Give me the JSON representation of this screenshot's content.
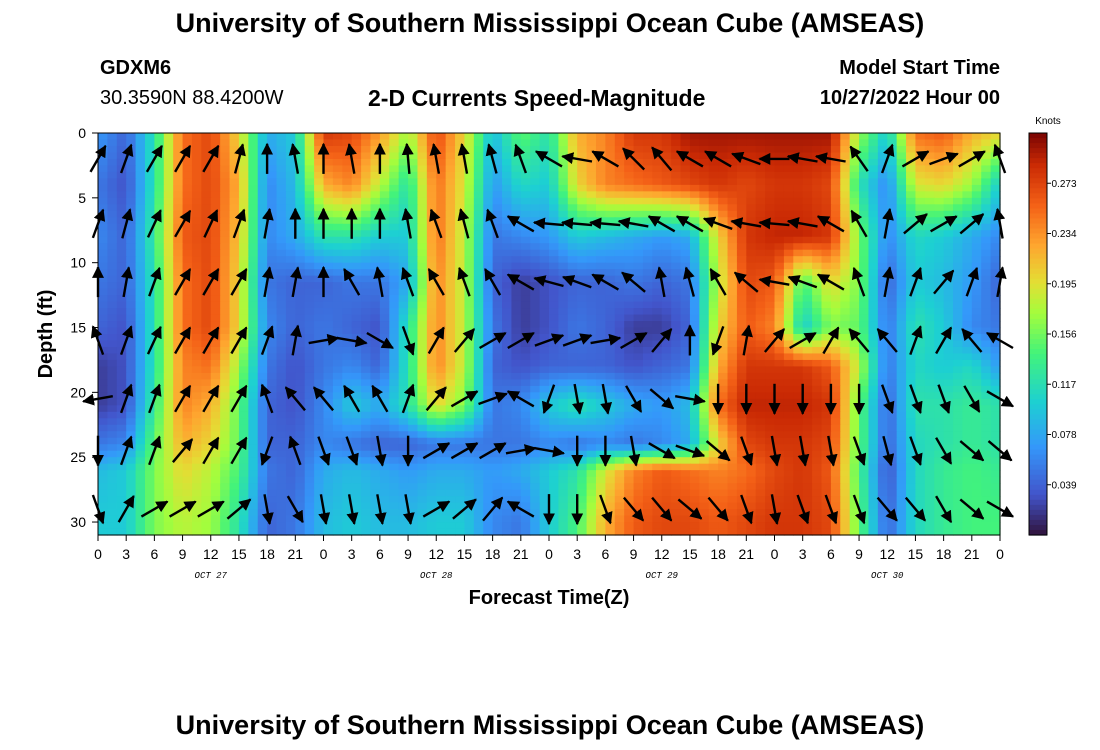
{
  "header": {
    "title": "University of Southern Mississippi Ocean Cube (AMSEAS)",
    "station": "GDXM6",
    "coords": "30.3590N  88.4200W",
    "subtitle": "2-D Currents Speed-Magnitude",
    "model_label": "Model Start Time",
    "model_time": "10/27/2022 Hour 00"
  },
  "footer": {
    "title": "University of Southern Mississippi Ocean Cube (AMSEAS)"
  },
  "chart_data": {
    "type": "heatmap",
    "xlabel": "Forecast Time(Z)",
    "ylabel": "Depth (ft)",
    "x_tick_labels": [
      "0",
      "3",
      "6",
      "9",
      "12",
      "15",
      "18",
      "21",
      "0",
      "3",
      "6",
      "9",
      "12",
      "15",
      "18",
      "21",
      "0",
      "3",
      "6",
      "9",
      "12",
      "15",
      "18",
      "21",
      "0",
      "3",
      "6",
      "9",
      "12",
      "15",
      "18",
      "21",
      "0"
    ],
    "date_labels": [
      {
        "label": "OCT 27",
        "hour": 12
      },
      {
        "label": "OCT 28",
        "hour": 36
      },
      {
        "label": "OCT 29",
        "hour": 60
      },
      {
        "label": "OCT 30",
        "hour": 84
      }
    ],
    "xlim_hours": [
      0,
      96
    ],
    "y_ticks": [
      0,
      5,
      10,
      15,
      20,
      25,
      30
    ],
    "ylim": [
      0,
      31
    ],
    "colorbar": {
      "title": "Knots",
      "ticks": [
        "0.273",
        "0.234",
        "0.195",
        "0.156",
        "0.117",
        "0.078",
        "0.039"
      ],
      "range": [
        0,
        0.312
      ]
    },
    "depth_levels": [
      0,
      4,
      8,
      11.5,
      15,
      18,
      21,
      24,
      26,
      30
    ],
    "times_hours": [
      0,
      3,
      6,
      9,
      12,
      15,
      18,
      21,
      24,
      27,
      30,
      33,
      36,
      39,
      42,
      45,
      48,
      51,
      54,
      57,
      60,
      63,
      66,
      69,
      72,
      75,
      78,
      81,
      84,
      87,
      90,
      93,
      96
    ],
    "speed_knots": [
      [
        0.07,
        0.04,
        0.12,
        0.25,
        0.27,
        0.2,
        0.08,
        0.1,
        0.28,
        0.27,
        0.23,
        0.17,
        0.27,
        0.2,
        0.09,
        0.15,
        0.12,
        0.22,
        0.24,
        0.28,
        0.28,
        0.3,
        0.3,
        0.3,
        0.3,
        0.3,
        0.3,
        0.17,
        0.1,
        0.25,
        0.26,
        0.22,
        0.2
      ],
      [
        0.05,
        0.03,
        0.12,
        0.25,
        0.27,
        0.22,
        0.06,
        0.09,
        0.22,
        0.24,
        0.18,
        0.12,
        0.25,
        0.19,
        0.07,
        0.11,
        0.1,
        0.2,
        0.24,
        0.25,
        0.26,
        0.27,
        0.28,
        0.27,
        0.28,
        0.28,
        0.27,
        0.12,
        0.06,
        0.19,
        0.2,
        0.17,
        0.1
      ],
      [
        0.06,
        0.04,
        0.13,
        0.26,
        0.27,
        0.21,
        0.06,
        0.08,
        0.12,
        0.12,
        0.1,
        0.1,
        0.25,
        0.18,
        0.05,
        0.06,
        0.07,
        0.1,
        0.09,
        0.08,
        0.07,
        0.08,
        0.2,
        0.28,
        0.29,
        0.29,
        0.28,
        0.16,
        0.06,
        0.11,
        0.1,
        0.08,
        0.06
      ],
      [
        0.05,
        0.04,
        0.12,
        0.25,
        0.27,
        0.2,
        0.05,
        0.04,
        0.04,
        0.05,
        0.05,
        0.08,
        0.24,
        0.18,
        0.04,
        0.02,
        0.03,
        0.04,
        0.04,
        0.05,
        0.04,
        0.05,
        0.18,
        0.27,
        0.26,
        0.14,
        0.2,
        0.16,
        0.04,
        0.1,
        0.09,
        0.07,
        0.04
      ],
      [
        0.04,
        0.03,
        0.12,
        0.25,
        0.27,
        0.2,
        0.06,
        0.04,
        0.05,
        0.04,
        0.03,
        0.12,
        0.24,
        0.18,
        0.05,
        0.02,
        0.03,
        0.05,
        0.04,
        0.02,
        0.02,
        0.04,
        0.2,
        0.26,
        0.24,
        0.1,
        0.16,
        0.15,
        0.05,
        0.12,
        0.1,
        0.06,
        0.05
      ],
      [
        0.02,
        0.03,
        0.12,
        0.24,
        0.25,
        0.17,
        0.05,
        0.03,
        0.05,
        0.06,
        0.04,
        0.12,
        0.24,
        0.18,
        0.04,
        0.03,
        0.04,
        0.04,
        0.04,
        0.03,
        0.04,
        0.05,
        0.22,
        0.28,
        0.28,
        0.28,
        0.26,
        0.18,
        0.05,
        0.11,
        0.1,
        0.11,
        0.07
      ],
      [
        0.02,
        0.03,
        0.13,
        0.24,
        0.22,
        0.15,
        0.04,
        0.03,
        0.06,
        0.1,
        0.08,
        0.12,
        0.2,
        0.16,
        0.05,
        0.06,
        0.1,
        0.12,
        0.1,
        0.08,
        0.07,
        0.09,
        0.25,
        0.29,
        0.29,
        0.29,
        0.28,
        0.15,
        0.04,
        0.12,
        0.12,
        0.13,
        0.12
      ],
      [
        0.05,
        0.06,
        0.15,
        0.22,
        0.2,
        0.15,
        0.04,
        0.04,
        0.06,
        0.05,
        0.04,
        0.04,
        0.05,
        0.05,
        0.05,
        0.05,
        0.06,
        0.05,
        0.06,
        0.05,
        0.06,
        0.08,
        0.2,
        0.27,
        0.28,
        0.28,
        0.27,
        0.15,
        0.04,
        0.11,
        0.12,
        0.13,
        0.12
      ],
      [
        0.09,
        0.1,
        0.16,
        0.2,
        0.18,
        0.14,
        0.05,
        0.04,
        0.08,
        0.09,
        0.08,
        0.07,
        0.08,
        0.08,
        0.07,
        0.08,
        0.1,
        0.12,
        0.19,
        0.24,
        0.26,
        0.25,
        0.24,
        0.25,
        0.27,
        0.28,
        0.26,
        0.14,
        0.03,
        0.11,
        0.13,
        0.14,
        0.13
      ],
      [
        0.1,
        0.1,
        0.16,
        0.18,
        0.17,
        0.12,
        0.04,
        0.05,
        0.09,
        0.1,
        0.09,
        0.09,
        0.1,
        0.1,
        0.06,
        0.05,
        0.1,
        0.14,
        0.22,
        0.26,
        0.27,
        0.27,
        0.26,
        0.27,
        0.28,
        0.28,
        0.27,
        0.15,
        0.04,
        0.11,
        0.13,
        0.14,
        0.14
      ]
    ],
    "vector_grid": {
      "times_hours": [
        0,
        3,
        6,
        9,
        12,
        15,
        18,
        21,
        24,
        27,
        30,
        33,
        36,
        39,
        42,
        45,
        48,
        51,
        54,
        57,
        60,
        63,
        66,
        69,
        72,
        75,
        78,
        81,
        84,
        87,
        90,
        93,
        96
      ],
      "depths_ft": [
        2,
        7,
        11.5,
        16,
        20.5,
        24.5,
        29
      ],
      "direction_deg": [
        [
          30,
          20,
          30,
          30,
          30,
          15,
          0,
          350,
          0,
          350,
          0,
          355,
          350,
          350,
          345,
          340,
          300,
          280,
          300,
          315,
          320,
          300,
          300,
          290,
          270,
          280,
          280,
          325,
          20,
          60,
          70,
          60,
          340
        ],
        [
          20,
          15,
          25,
          30,
          25,
          20,
          10,
          0,
          0,
          0,
          0,
          350,
          340,
          345,
          340,
          300,
          275,
          275,
          275,
          280,
          300,
          300,
          290,
          280,
          275,
          280,
          300,
          330,
          10,
          50,
          60,
          50,
          350
        ],
        [
          0,
          10,
          20,
          30,
          30,
          30,
          10,
          10,
          0,
          330,
          350,
          340,
          330,
          340,
          330,
          300,
          285,
          290,
          300,
          310,
          350,
          345,
          330,
          310,
          280,
          290,
          300,
          340,
          10,
          20,
          40,
          20,
          10
        ],
        [
          340,
          20,
          25,
          30,
          30,
          30,
          20,
          10,
          80,
          100,
          120,
          160,
          30,
          40,
          60,
          60,
          70,
          70,
          80,
          60,
          40,
          0,
          200,
          10,
          40,
          60,
          30,
          320,
          320,
          20,
          30,
          320,
          300
        ],
        [
          260,
          20,
          20,
          30,
          30,
          30,
          340,
          320,
          320,
          330,
          330,
          20,
          40,
          60,
          70,
          300,
          200,
          170,
          170,
          150,
          130,
          100,
          180,
          180,
          180,
          180,
          180,
          180,
          160,
          160,
          160,
          150,
          120
        ],
        [
          180,
          20,
          20,
          40,
          30,
          30,
          200,
          340,
          160,
          160,
          170,
          180,
          60,
          60,
          60,
          80,
          100,
          180,
          180,
          170,
          120,
          110,
          130,
          160,
          170,
          170,
          170,
          160,
          165,
          160,
          150,
          130,
          130
        ],
        [
          160,
          30,
          60,
          60,
          60,
          50,
          170,
          150,
          170,
          170,
          170,
          170,
          60,
          50,
          40,
          300,
          180,
          180,
          160,
          140,
          140,
          130,
          140,
          160,
          170,
          160,
          160,
          160,
          140,
          140,
          150,
          130,
          120
        ]
      ]
    }
  }
}
